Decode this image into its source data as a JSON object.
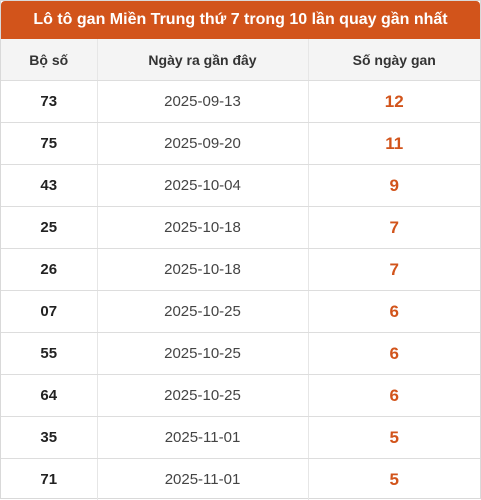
{
  "title": "Lô tô gan Miền Trung thứ 7 trong 10 lần quay gần nhất",
  "colors": {
    "header_bg": "#d2541b",
    "accent_text": "#d2541b",
    "column_header_bg": "#f4f4f4"
  },
  "table": {
    "headers": [
      "Bộ số",
      "Ngày ra gần đây",
      "Số ngày gan"
    ],
    "rows": [
      {
        "so": "73",
        "ngay": "2025-09-13",
        "gan": "12"
      },
      {
        "so": "75",
        "ngay": "2025-09-20",
        "gan": "11"
      },
      {
        "so": "43",
        "ngay": "2025-10-04",
        "gan": "9"
      },
      {
        "so": "25",
        "ngay": "2025-10-18",
        "gan": "7"
      },
      {
        "so": "26",
        "ngay": "2025-10-18",
        "gan": "7"
      },
      {
        "so": "07",
        "ngay": "2025-10-25",
        "gan": "6"
      },
      {
        "so": "55",
        "ngay": "2025-10-25",
        "gan": "6"
      },
      {
        "so": "64",
        "ngay": "2025-10-25",
        "gan": "6"
      },
      {
        "so": "35",
        "ngay": "2025-11-01",
        "gan": "5"
      },
      {
        "so": "71",
        "ngay": "2025-11-01",
        "gan": "5"
      }
    ]
  }
}
